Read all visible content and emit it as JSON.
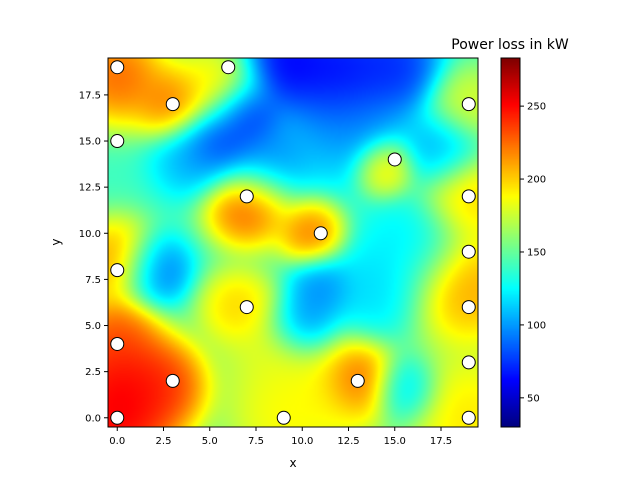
{
  "chart_data": {
    "type": "heatmap",
    "title": "Power loss in kW",
    "xlabel": "x",
    "ylabel": "y",
    "xlim": [
      -0.5,
      19.5
    ],
    "ylim": [
      -0.5,
      19.5
    ],
    "x_ticks": [
      0.0,
      2.5,
      5.0,
      7.5,
      10.0,
      12.5,
      15.0,
      17.5
    ],
    "x_tick_labels": [
      "0.0",
      "2.5",
      "5.0",
      "7.5",
      "10.0",
      "12.5",
      "15.0",
      "17.5"
    ],
    "y_ticks": [
      0.0,
      2.5,
      5.0,
      7.5,
      10.0,
      12.5,
      15.0,
      17.5
    ],
    "y_tick_labels": [
      "0.0",
      "2.5",
      "5.0",
      "7.5",
      "10.0",
      "12.5",
      "15.0",
      "17.5"
    ],
    "colorbar": {
      "label": "Power loss in kW",
      "colormap": "jet",
      "range": [
        30,
        283
      ],
      "ticks": [
        50,
        100,
        150,
        200,
        250
      ],
      "tick_labels": [
        "50",
        "100",
        "150",
        "200",
        "250"
      ]
    },
    "background_level": 140,
    "field_sources": [
      {
        "x": 0,
        "y": 0,
        "v": 285,
        "s": 1.8
      },
      {
        "x": 0,
        "y": 2.5,
        "v": 265,
        "s": 1.6
      },
      {
        "x": 2.5,
        "y": 1.8,
        "v": 260,
        "s": 1.4
      },
      {
        "x": 0,
        "y": 4.5,
        "v": 245,
        "s": 1.2
      },
      {
        "x": 0,
        "y": 8.5,
        "v": 235,
        "s": 1.3
      },
      {
        "x": 0,
        "y": 18.5,
        "v": 250,
        "s": 1.5
      },
      {
        "x": 3.0,
        "y": 17.0,
        "v": 240,
        "s": 1.1
      },
      {
        "x": 7.0,
        "y": 11.5,
        "v": 255,
        "s": 1.3
      },
      {
        "x": 10.5,
        "y": 10.0,
        "v": 240,
        "s": 1.0
      },
      {
        "x": 13.0,
        "y": 2.0,
        "v": 255,
        "s": 1.2
      },
      {
        "x": 19.0,
        "y": 7.0,
        "v": 230,
        "s": 1.8
      },
      {
        "x": 19.0,
        "y": 12.0,
        "v": 215,
        "s": 1.4
      },
      {
        "x": 19.0,
        "y": 0.0,
        "v": 210,
        "s": 2.0
      },
      {
        "x": 19.0,
        "y": 17.0,
        "v": 190,
        "s": 1.2
      },
      {
        "x": 5.5,
        "y": 18.0,
        "v": 205,
        "s": 1.4
      },
      {
        "x": 6.5,
        "y": 6.0,
        "v": 215,
        "s": 1.2
      },
      {
        "x": 9.0,
        "y": 0.0,
        "v": 200,
        "s": 1.8
      },
      {
        "x": 11.0,
        "y": 1.0,
        "v": 195,
        "s": 1.8
      },
      {
        "x": 14.5,
        "y": 13.5,
        "v": 215,
        "s": 0.9
      },
      {
        "x": 8.5,
        "y": 3.5,
        "v": 190,
        "s": 1.6
      },
      {
        "x": 12.0,
        "y": 18.5,
        "v": 40,
        "s": 1.6
      },
      {
        "x": 9.0,
        "y": 19.2,
        "v": 40,
        "s": 1.4
      },
      {
        "x": 15.0,
        "y": 19.0,
        "v": 55,
        "s": 1.4
      },
      {
        "x": 5.5,
        "y": 15.0,
        "v": 55,
        "s": 1.2
      },
      {
        "x": 7.0,
        "y": 16.5,
        "v": 50,
        "s": 1.0
      },
      {
        "x": 8.0,
        "y": 14.0,
        "v": 85,
        "s": 1.4
      },
      {
        "x": 12.5,
        "y": 16.0,
        "v": 90,
        "s": 1.8
      },
      {
        "x": 2.0,
        "y": 8.0,
        "v": 70,
        "s": 1.1
      },
      {
        "x": 10.0,
        "y": 5.0,
        "v": 70,
        "s": 1.0
      },
      {
        "x": 11.0,
        "y": 7.0,
        "v": 85,
        "s": 1.0
      },
      {
        "x": 4.0,
        "y": 14.0,
        "v": 100,
        "s": 1.2
      },
      {
        "x": 14.0,
        "y": 7.0,
        "v": 110,
        "s": 1.5
      },
      {
        "x": 17.5,
        "y": 14.5,
        "v": 95,
        "s": 1.2
      },
      {
        "x": 16.0,
        "y": 9.5,
        "v": 115,
        "s": 1.5
      },
      {
        "x": 15.5,
        "y": 1.5,
        "v": 100,
        "s": 1.0
      }
    ],
    "markers": [
      {
        "x": 0,
        "y": 19
      },
      {
        "x": 6,
        "y": 19
      },
      {
        "x": 3,
        "y": 17
      },
      {
        "x": 19,
        "y": 17
      },
      {
        "x": 0,
        "y": 15
      },
      {
        "x": 15,
        "y": 14
      },
      {
        "x": 7,
        "y": 12
      },
      {
        "x": 19,
        "y": 12
      },
      {
        "x": 11,
        "y": 10
      },
      {
        "x": 19,
        "y": 9
      },
      {
        "x": 0,
        "y": 8
      },
      {
        "x": 7,
        "y": 6
      },
      {
        "x": 19,
        "y": 6
      },
      {
        "x": 0,
        "y": 4
      },
      {
        "x": 19,
        "y": 3
      },
      {
        "x": 3,
        "y": 2
      },
      {
        "x": 13,
        "y": 2
      },
      {
        "x": 0,
        "y": 0
      },
      {
        "x": 9,
        "y": 0
      },
      {
        "x": 19,
        "y": 0
      }
    ],
    "marker_style": {
      "fill": "#ffffff",
      "stroke": "#000000"
    }
  }
}
